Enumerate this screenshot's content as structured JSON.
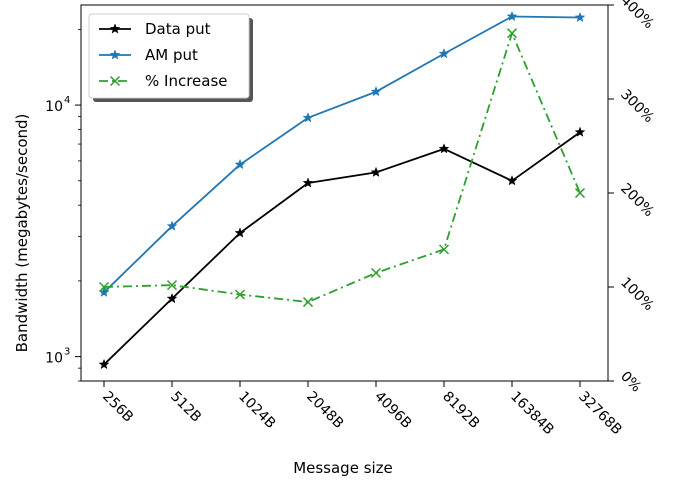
{
  "chart_data": {
    "type": "line",
    "xlabel": "Message size",
    "ylabel": "Bandwidth (megabytes/second)",
    "categories": [
      "256B",
      "512B",
      "1024B",
      "2048B",
      "4096B",
      "8192B",
      "16384B",
      "32768B"
    ],
    "y_scale": "log",
    "ylim": [
      800,
      25000
    ],
    "y_ticks": [
      {
        "value": 1000,
        "base": "10",
        "exp": "3"
      },
      {
        "value": 10000,
        "base": "10",
        "exp": "4"
      }
    ],
    "y2_scale": "linear",
    "y2lim": [
      0,
      400
    ],
    "y2_ticks": [
      {
        "value": 0,
        "label": "0%"
      },
      {
        "value": 100,
        "label": "100%"
      },
      {
        "value": 200,
        "label": "200%"
      },
      {
        "value": 300,
        "label": "300%"
      },
      {
        "value": 400,
        "label": "400%"
      }
    ],
    "grid": false,
    "legend_position": "top-left",
    "series": [
      {
        "name": "Data put",
        "axis": "left",
        "color": "#000000",
        "marker": "star",
        "dash": "solid",
        "values": [
          930,
          1700,
          3100,
          4900,
          5400,
          6700,
          5000,
          7800
        ]
      },
      {
        "name": "AM put",
        "axis": "left",
        "color": "#1f77b4",
        "marker": "star",
        "dash": "solid",
        "values": [
          1800,
          3300,
          5800,
          8900,
          11300,
          16000,
          22500,
          22300
        ]
      },
      {
        "name": "% Increase",
        "axis": "right",
        "color": "#2ca02c",
        "marker": "x",
        "dash": "dashdot",
        "values": [
          100,
          102,
          92,
          84,
          115,
          140,
          370,
          200
        ]
      }
    ]
  }
}
